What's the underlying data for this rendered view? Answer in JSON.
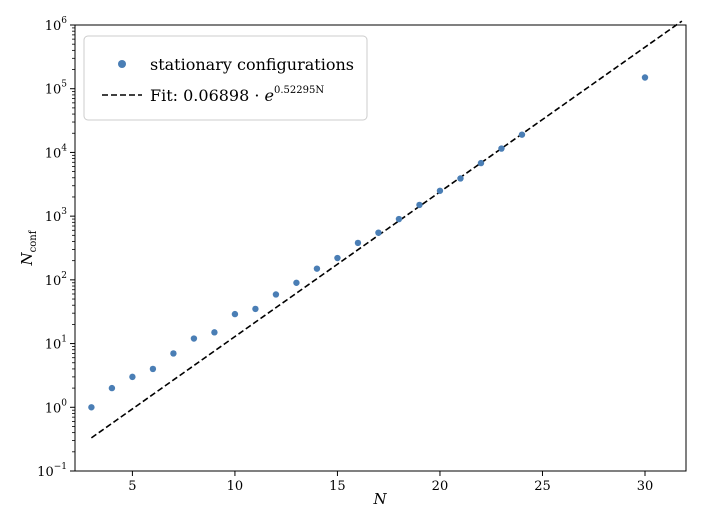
{
  "chart_data": {
    "type": "scatter",
    "xlabel": "N",
    "ylabel_main": "N",
    "ylabel_sub": "conf",
    "xlim": [
      2.2,
      32
    ],
    "ylim_log10": [
      -1,
      6
    ],
    "y_scale": "log",
    "grid": false,
    "legend_placement": "top-left",
    "x_ticks": [
      5,
      10,
      15,
      20,
      25,
      30
    ],
    "y_ticks": [
      {
        "base": "10",
        "exp": "−1",
        "value": 0.1
      },
      {
        "base": "10",
        "exp": "0",
        "value": 1
      },
      {
        "base": "10",
        "exp": "1",
        "value": 10
      },
      {
        "base": "10",
        "exp": "2",
        "value": 100
      },
      {
        "base": "10",
        "exp": "3",
        "value": 1000
      },
      {
        "base": "10",
        "exp": "4",
        "value": 10000
      },
      {
        "base": "10",
        "exp": "5",
        "value": 100000
      },
      {
        "base": "10",
        "exp": "6",
        "value": 1000000
      }
    ],
    "series": [
      {
        "name": "stationary configurations",
        "kind": "scatter",
        "color": "#4a7eb5",
        "x": [
          3,
          4,
          5,
          6,
          7,
          8,
          9,
          10,
          11,
          12,
          13,
          14,
          15,
          16,
          17,
          18,
          19,
          20,
          21,
          22,
          23,
          24,
          30
        ],
        "y": [
          1,
          2,
          3,
          4,
          7,
          12,
          15,
          29,
          35,
          59,
          90,
          150,
          220,
          380,
          550,
          900,
          1500,
          2500,
          3900,
          6800,
          11500,
          19000,
          150000
        ]
      },
      {
        "name": "Fit: 0.06898 · e^{0.52295N}",
        "kind": "line",
        "color": "#000000",
        "dash": "dashed",
        "a": 0.06898,
        "b": 0.52295,
        "x_range": [
          3,
          31.8
        ]
      }
    ],
    "legend": {
      "scatter_label": "stationary configurations",
      "fit_label_prefix": "Fit: 0.06898 · ",
      "fit_label_base": "e",
      "fit_label_exp": "0.52295N"
    }
  }
}
